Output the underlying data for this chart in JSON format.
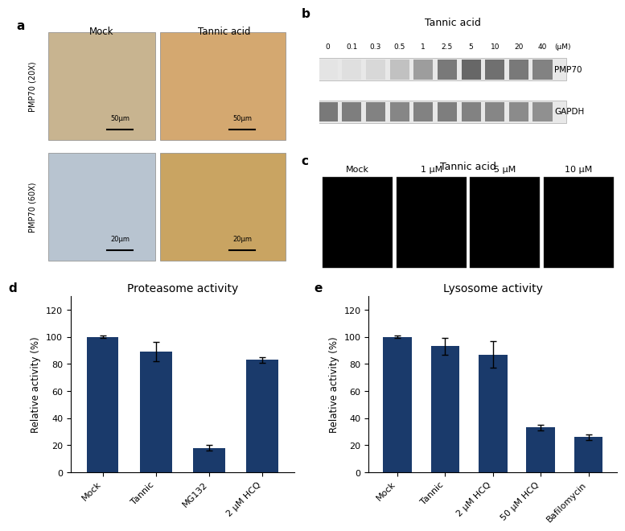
{
  "panel_d": {
    "title": "Proteasome activity",
    "ylabel": "Relative activity (%)",
    "categories": [
      "Mock",
      "Tannic",
      "MG132",
      "2 μM HCQ"
    ],
    "values": [
      100,
      89,
      18,
      83
    ],
    "errors": [
      1,
      7,
      2,
      2
    ],
    "bar_color": "#1a3a6b",
    "ylim": [
      0,
      130
    ],
    "yticks": [
      0,
      20,
      40,
      60,
      80,
      100,
      120
    ]
  },
  "panel_e": {
    "title": "Lysosome activity",
    "ylabel": "Relative activity (%)",
    "categories": [
      "Mock",
      "Tannic",
      "2 μM HCQ",
      "50 μM HCQ",
      "Bafilomycin"
    ],
    "values": [
      100,
      93,
      87,
      33,
      26
    ],
    "errors": [
      1,
      6,
      10,
      2,
      2
    ],
    "bar_color": "#1a3a6b",
    "ylim": [
      0,
      130
    ],
    "yticks": [
      0,
      20,
      40,
      60,
      80,
      100,
      120
    ]
  },
  "panel_a": {
    "label": "a",
    "col_labels": [
      "Mock",
      "Tannic acid"
    ],
    "row_labels": [
      "PMP70 (20X)",
      "PMP70 (60X)"
    ],
    "scale_bars": [
      "50μm",
      "50μm",
      "20μm",
      "20μm"
    ],
    "colors": [
      "#c8b490",
      "#d4a870",
      "#b8c4d0",
      "#c9a462"
    ]
  },
  "panel_b": {
    "label": "b",
    "title": "Tannic acid",
    "concs": [
      "0",
      "0.1",
      "0.3",
      "0.5",
      "1",
      "2.5",
      "5",
      "10",
      "20",
      "40"
    ],
    "unit": "(μM)",
    "bands": [
      "PMP70",
      "GAPDH"
    ],
    "pmp70_intensities": [
      0.15,
      0.18,
      0.22,
      0.35,
      0.55,
      0.75,
      0.85,
      0.8,
      0.75,
      0.7
    ],
    "gapdh_intensities": [
      0.75,
      0.72,
      0.7,
      0.68,
      0.7,
      0.72,
      0.7,
      0.68,
      0.65,
      0.62
    ]
  },
  "panel_c": {
    "label": "c",
    "title": "Tannic acid",
    "fluor_labels": [
      "Mock",
      "1 μM",
      "5 μM",
      "10 μM"
    ]
  },
  "label_fontsize": 8.5,
  "title_fontsize": 10,
  "panel_label_fontsize": 11,
  "tick_fontsize": 8,
  "background_color": "#ffffff"
}
